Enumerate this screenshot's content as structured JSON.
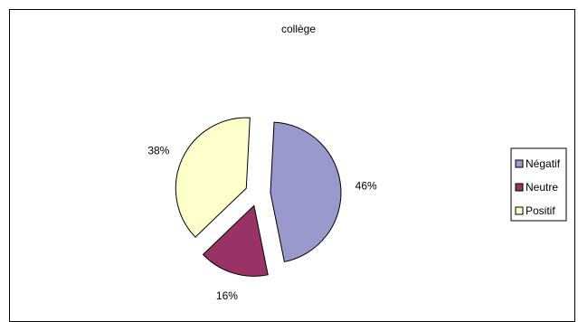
{
  "chart_data": {
    "type": "pie",
    "title": "collège",
    "labels": [
      "Négatif",
      "Neutre",
      "Positif"
    ],
    "values": [
      46,
      16,
      38
    ],
    "value_labels": [
      "46%",
      "16%",
      "38%"
    ],
    "colors": [
      "#9999CC",
      "#993366",
      "#FFFFCC"
    ],
    "exploded": true,
    "legend_position": "right"
  }
}
